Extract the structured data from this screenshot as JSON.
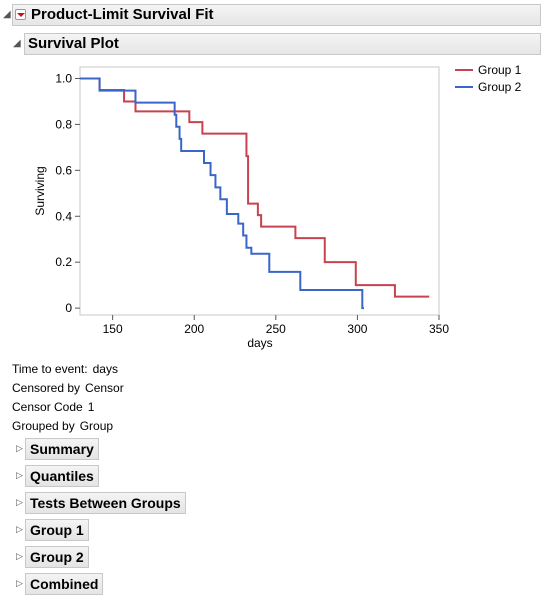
{
  "report": {
    "title": "Product-Limit Survival Fit",
    "plot_section_title": "Survival Plot"
  },
  "info": [
    {
      "label": "Time to event:",
      "value": "days"
    },
    {
      "label": "Censored by",
      "value": "Censor"
    },
    {
      "label": "Censor Code",
      "value": "1"
    },
    {
      "label": "Grouped by",
      "value": "Group"
    }
  ],
  "sections": [
    "Summary",
    "Quantiles",
    "Tests Between Groups",
    "Group 1",
    "Group 2",
    "Combined"
  ],
  "chart_data": {
    "type": "line",
    "title": "",
    "xlabel": "days",
    "ylabel": "Surviving",
    "xlim": [
      130,
      350
    ],
    "ylim": [
      -0.03,
      1.05
    ],
    "xticks": [
      150,
      200,
      250,
      300,
      350
    ],
    "yticks": [
      0,
      0.2,
      0.4,
      0.6,
      0.8,
      1.0
    ],
    "ytick_labels": [
      "0",
      "0.2",
      "0.4",
      "0.6",
      "0.8",
      "1.0"
    ],
    "legend_position": "right",
    "series": [
      {
        "name": "Group 1",
        "color": "#c8424f",
        "steps": [
          [
            130,
            1.0
          ],
          [
            142,
            0.95
          ],
          [
            157,
            0.9
          ],
          [
            164,
            0.857
          ],
          [
            197,
            0.81
          ],
          [
            205,
            0.76
          ],
          [
            232,
            0.662
          ],
          [
            233,
            0.455
          ],
          [
            239,
            0.405
          ],
          [
            241,
            0.355
          ],
          [
            262,
            0.305
          ],
          [
            280,
            0.2
          ],
          [
            299,
            0.1
          ],
          [
            323,
            0.05
          ],
          [
            344,
            0.05
          ]
        ]
      },
      {
        "name": "Group 2",
        "color": "#3a66c9",
        "steps": [
          [
            130,
            1.0
          ],
          [
            142,
            0.947
          ],
          [
            164,
            0.895
          ],
          [
            188,
            0.842
          ],
          [
            189,
            0.79
          ],
          [
            191,
            0.737
          ],
          [
            192,
            0.684
          ],
          [
            206,
            0.632
          ],
          [
            210,
            0.579
          ],
          [
            213,
            0.526
          ],
          [
            216,
            0.474
          ],
          [
            220,
            0.41
          ],
          [
            227,
            0.368
          ],
          [
            230,
            0.316
          ],
          [
            232,
            0.263
          ],
          [
            235,
            0.237
          ],
          [
            246,
            0.158
          ],
          [
            265,
            0.079
          ],
          [
            303,
            0.0
          ],
          [
            304,
            0.0
          ]
        ]
      }
    ]
  }
}
